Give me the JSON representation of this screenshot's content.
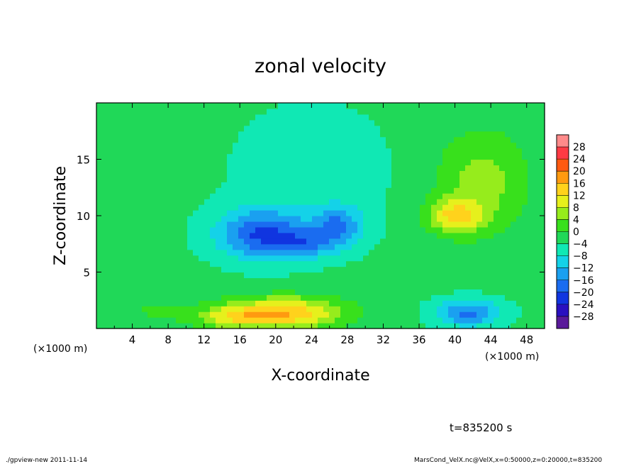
{
  "chart_data": {
    "type": "heatmap",
    "title": "zonal velocity",
    "xlabel": "X-coordinate",
    "ylabel": "Z-coordinate",
    "x_unit": "(×1000 m)",
    "y_unit": "(×1000 m)",
    "xlim": [
      0,
      50
    ],
    "ylim": [
      0,
      20
    ],
    "xticks": [
      "4",
      "8",
      "12",
      "16",
      "20",
      "24",
      "28",
      "32",
      "36",
      "40",
      "44",
      "48"
    ],
    "yticks": [
      "5",
      "10",
      "15"
    ],
    "colorbar": {
      "levels": [
        -32,
        -28,
        -24,
        -20,
        -16,
        -12,
        -8,
        -4,
        0,
        4,
        8,
        12,
        16,
        20,
        24,
        28,
        32
      ],
      "labels": [
        "28",
        "24",
        "20",
        "16",
        "12",
        "8",
        "4",
        "0",
        "−4",
        "−8",
        "−12",
        "−16",
        "−20",
        "−24",
        "−28"
      ],
      "colors": [
        "#5a1a9a",
        "#2a10c0",
        "#1035e0",
        "#1a6cf0",
        "#1aa0f0",
        "#14d2e8",
        "#10e8b4",
        "#20d858",
        "#38e01c",
        "#96ec1c",
        "#e6f01c",
        "#ffd21c",
        "#ff9a10",
        "#ff5a10",
        "#ff3a44",
        "#ff8a8a"
      ]
    },
    "background": -3,
    "features": [
      {
        "x": 18.5,
        "z": 8.4,
        "sx": 5,
        "sz": 2.2,
        "amp": -17
      },
      {
        "x": 27,
        "z": 9,
        "sx": 2.8,
        "sz": 1.8,
        "amp": -13
      },
      {
        "x": 23,
        "z": 7.5,
        "sx": 3,
        "sz": 1.2,
        "amp": -9
      },
      {
        "x": 24,
        "z": 14,
        "sx": 9,
        "sz": 6,
        "amp": -3
      },
      {
        "x": 21,
        "z": 1.4,
        "sx": 6.5,
        "sz": 1.4,
        "amp": 19
      },
      {
        "x": 15,
        "z": 1,
        "sx": 4,
        "sz": 1,
        "amp": 9
      },
      {
        "x": 40,
        "z": 10,
        "sx": 3,
        "sz": 1.5,
        "amp": 14
      },
      {
        "x": 43,
        "z": 13,
        "sx": 5,
        "sz": 4.5,
        "amp": 9
      },
      {
        "x": 41.5,
        "z": 1.4,
        "sx": 3.6,
        "sz": 1.2,
        "amp": -14
      },
      {
        "x": 6,
        "z": 1.6,
        "sx": 5,
        "sz": 2,
        "amp": 3
      }
    ]
  },
  "annotations": {
    "time": "t=835200 s",
    "footer_left": "./gpview-new  2011-11-14",
    "footer_right": "MarsCond_VelX.nc@VelX,x=0:50000,z=0:20000,t=835200"
  }
}
